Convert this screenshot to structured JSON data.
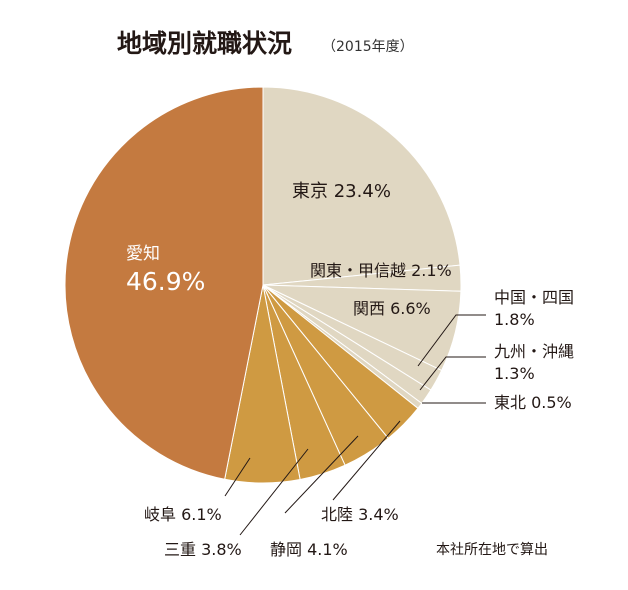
{
  "chart_data": {
    "type": "pie",
    "title": "地域別就職状況",
    "subtitle": "（2015年度）",
    "note": "本社所在地で算出",
    "start": "top",
    "direction": "clockwise",
    "slices": [
      {
        "label": "東京",
        "value": 23.4,
        "display": "23.4%",
        "color": "#e0d7c2"
      },
      {
        "label": "関東・甲信越",
        "value": 2.1,
        "display": "2.1%",
        "color": "#e0d7c2"
      },
      {
        "label": "関西",
        "value": 6.6,
        "display": "6.6%",
        "color": "#e0d7c2"
      },
      {
        "label": "中国・四国",
        "value": 1.8,
        "display": "1.8%",
        "color": "#e0d7c2"
      },
      {
        "label": "九州・沖縄",
        "value": 1.3,
        "display": "1.3%",
        "color": "#e0d7c2"
      },
      {
        "label": "東北",
        "value": 0.5,
        "display": "0.5%",
        "color": "#e0d7c2"
      },
      {
        "label": "北陸",
        "value": 3.4,
        "display": "3.4%",
        "color": "#cf9a42"
      },
      {
        "label": "静岡",
        "value": 4.1,
        "display": "4.1%",
        "color": "#cf9a42"
      },
      {
        "label": "三重",
        "value": 3.8,
        "display": "3.8%",
        "color": "#cf9a42"
      },
      {
        "label": "岐阜",
        "value": 6.1,
        "display": "6.1%",
        "color": "#cf9a42"
      },
      {
        "label": "愛知",
        "value": 46.9,
        "display": "46.9%",
        "color": "#c47a40"
      }
    ]
  }
}
